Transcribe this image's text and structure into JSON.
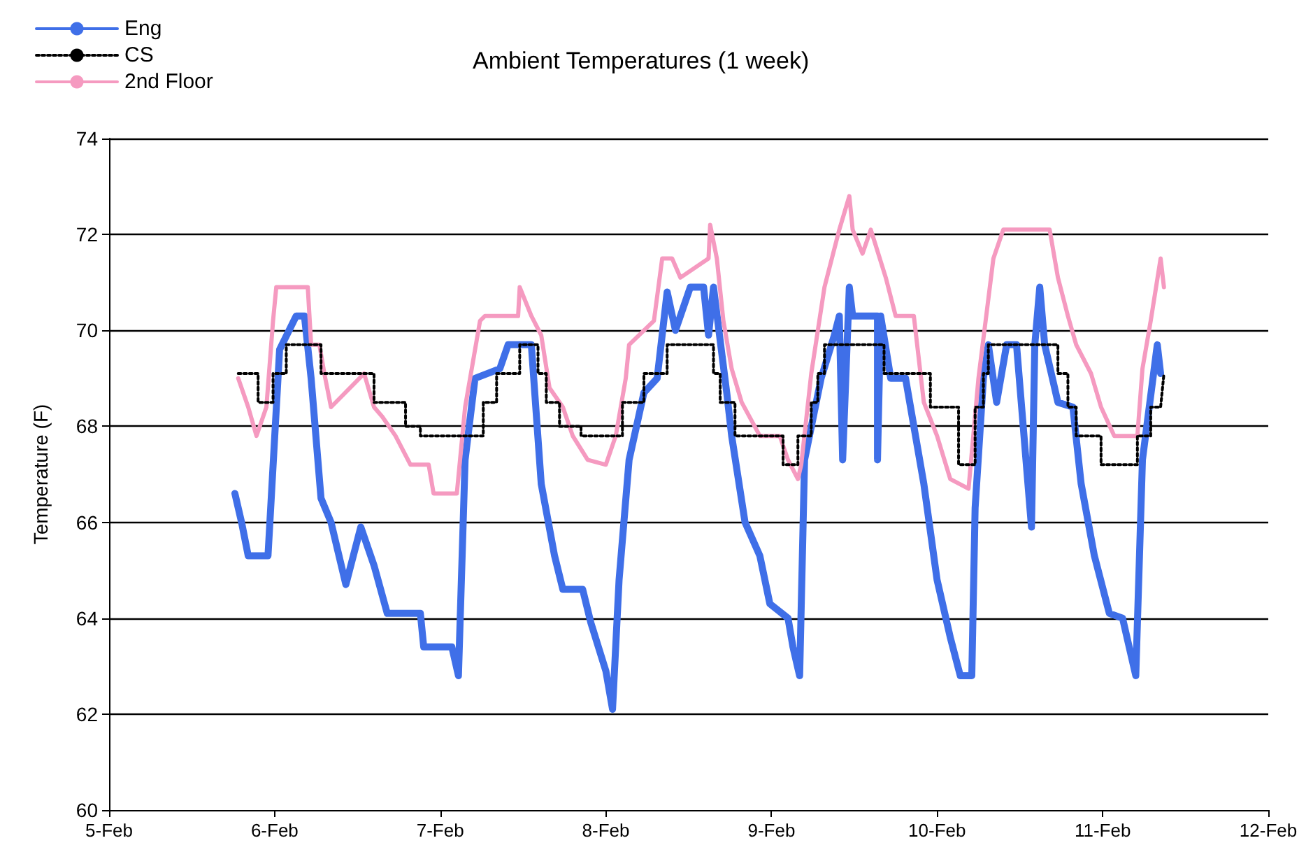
{
  "chart_data": {
    "type": "line",
    "title": "Ambient Temperatures (1 week)",
    "ylabel": "Temperature (F)",
    "xlim": [
      "--02-05",
      "--02-12"
    ],
    "xticks": [
      {
        "value": "--02-05",
        "label": "5-Feb"
      },
      {
        "value": "--02-06",
        "label": "6-Feb"
      },
      {
        "value": "--02-07",
        "label": "7-Feb"
      },
      {
        "value": "--02-08",
        "label": "8-Feb"
      },
      {
        "value": "--02-09",
        "label": "9-Feb"
      },
      {
        "value": "--02-10",
        "label": "10-Feb"
      },
      {
        "value": "--02-11",
        "label": "11-Feb"
      },
      {
        "value": "--02-12",
        "label": "12-Feb"
      }
    ],
    "ylim": [
      60,
      74
    ],
    "yticks": [
      60,
      62,
      64,
      66,
      68,
      70,
      72,
      74
    ],
    "grid": "y",
    "legend": "top left",
    "marker": "none",
    "series": [
      {
        "name": "Eng",
        "color": "#3f6fe8",
        "line_style": "solid",
        "x": [
          "--02-05T18:14",
          "--02-05T19:12",
          "--02-05T20:10",
          "--02-05T23:02",
          "--02-06T00:43",
          "--02-06T03:07",
          "--02-06T04:19",
          "--02-06T05:17",
          "--02-06T06:43",
          "--02-06T08:10",
          "--02-06T10:19",
          "--02-06T12:29",
          "--02-06T14:24",
          "--02-06T16:19",
          "--02-06T21:07",
          "--02-06T21:36",
          "--02-07T01:41",
          "--02-07T02:38",
          "--02-07T03:36",
          "--02-07T05:02",
          "--02-07T08:38",
          "--02-07T09:50",
          "--02-07T13:12",
          "--02-07T14:38",
          "--02-07T16:34",
          "--02-07T17:46",
          "--02-07T20:38",
          "--02-07T21:50",
          "--02-08T00:00",
          "--02-08T00:58",
          "--02-08T01:55",
          "--02-08T03:22",
          "--02-08T05:31",
          "--02-08T07:26",
          "--02-08T08:53",
          "--02-08T10:05",
          "--02-08T12:14",
          "--02-08T14:10",
          "--02-08T14:53",
          "--02-08T15:36",
          "--02-08T17:31",
          "--02-08T18:14",
          "--02-08T20:10",
          "--02-08T22:19",
          "--02-08T23:46",
          "--02-09T02:24",
          "--02-09T03:07",
          "--02-09T04:05",
          "--02-09T04:48",
          "--02-09T07:12",
          "--02-09T09:07",
          "--02-09T09:50",
          "--02-09T10:19",
          "--02-09T11:17",
          "--02-09T11:46",
          "--02-09T15:22",
          "--02-09T15:22",
          "--02-09T15:50",
          "--02-09T17:17",
          "--02-09T19:26",
          "--02-09T22:05",
          "--02-10T00:00",
          "--02-10T01:55",
          "--02-10T03:22",
          "--02-10T05:02",
          "--02-10T05:31",
          "--02-10T06:43",
          "--02-10T07:26",
          "--02-10T08:38",
          "--02-10T10:05",
          "--02-10T11:31",
          "--02-10T13:41",
          "--02-10T14:10",
          "--02-10T14:53",
          "--02-10T15:36",
          "--02-10T17:31",
          "--02-10T19:41",
          "--02-10T20:53",
          "--02-10T22:48",
          "--02-11T00:58",
          "--02-11T02:53",
          "--02-11T04:48",
          "--02-11T05:46",
          "--02-11T07:55",
          "--02-11T08:24"
        ],
        "values": [
          66.6,
          66.0,
          65.3,
          65.3,
          69.6,
          70.3,
          70.3,
          69.0,
          66.5,
          66.0,
          64.7,
          65.9,
          65.1,
          64.1,
          64.1,
          63.4,
          63.4,
          62.8,
          67.3,
          69.0,
          69.2,
          69.7,
          69.7,
          66.8,
          65.3,
          64.6,
          64.6,
          63.9,
          62.9,
          62.1,
          64.8,
          67.3,
          68.7,
          69.0,
          70.8,
          70.0,
          70.9,
          70.9,
          69.9,
          70.9,
          68.7,
          67.8,
          66.0,
          65.3,
          64.3,
          64.0,
          63.4,
          62.8,
          67.3,
          69.0,
          69.9,
          70.3,
          67.3,
          70.9,
          70.3,
          70.3,
          67.3,
          70.3,
          69.0,
          69.0,
          66.8,
          64.8,
          63.6,
          62.8,
          62.8,
          66.3,
          69.0,
          69.7,
          68.5,
          69.7,
          69.7,
          65.9,
          69.7,
          70.9,
          69.7,
          68.5,
          68.4,
          66.8,
          65.3,
          64.1,
          64.0,
          62.8,
          67.3,
          69.7,
          69.1
        ]
      },
      {
        "name": "CS",
        "color": "#000000",
        "line_style": "dotted",
        "x": [
          "--02-05T18:43",
          "--02-05T21:36",
          "--02-05T21:36",
          "--02-05T23:46",
          "--02-05T23:46",
          "--02-06T01:41",
          "--02-06T01:41",
          "--02-06T06:43",
          "--02-06T06:43",
          "--02-06T14:24",
          "--02-06T14:24",
          "--02-06T18:58",
          "--02-06T18:58",
          "--02-06T21:07",
          "--02-06T21:07",
          "--02-07T06:14",
          "--02-07T06:14",
          "--02-07T08:10",
          "--02-07T08:10",
          "--02-07T11:31",
          "--02-07T11:31",
          "--02-07T14:10",
          "--02-07T14:10",
          "--02-07T15:22",
          "--02-07T15:22",
          "--02-07T17:17",
          "--02-07T17:17",
          "--02-07T20:24",
          "--02-07T20:24",
          "--02-08T02:24",
          "--02-08T02:24",
          "--02-08T05:31",
          "--02-08T05:31",
          "--02-08T08:53",
          "--02-08T08:53",
          "--02-08T15:36",
          "--02-08T15:36",
          "--02-08T16:34",
          "--02-08T16:34",
          "--02-08T18:43",
          "--02-08T18:43",
          "--02-08T22:34",
          "--02-08T22:34",
          "--02-09T01:41",
          "--02-09T01:41",
          "--02-09T03:50",
          "--02-09T03:50",
          "--02-09T05:46",
          "--02-09T05:46",
          "--02-09T06:43",
          "--02-09T06:43",
          "--02-09T07:41",
          "--02-09T07:41",
          "--02-09T16:19",
          "--02-09T16:19",
          "--02-09T23:02",
          "--02-09T23:02",
          "--02-10T03:07",
          "--02-10T03:07",
          "--02-10T05:31",
          "--02-10T05:31",
          "--02-10T06:43",
          "--02-10T06:43",
          "--02-10T07:26",
          "--02-10T07:26",
          "--02-10T17:31",
          "--02-10T17:31",
          "--02-10T18:58",
          "--02-10T18:58",
          "--02-10T20:10",
          "--02-10T20:10",
          "--02-10T23:46",
          "--02-10T23:46",
          "--02-11T05:02",
          "--02-11T05:02",
          "--02-11T06:58",
          "--02-11T06:58",
          "--02-11T08:24",
          "--02-11T08:53"
        ],
        "values": [
          69.1,
          69.1,
          68.5,
          68.5,
          69.1,
          69.1,
          69.7,
          69.7,
          69.1,
          69.1,
          68.5,
          68.5,
          68.0,
          68.0,
          67.8,
          67.8,
          68.5,
          68.5,
          69.1,
          69.1,
          69.7,
          69.7,
          69.1,
          69.1,
          68.5,
          68.5,
          68.0,
          68.0,
          67.8,
          67.8,
          68.5,
          68.5,
          69.1,
          69.1,
          69.7,
          69.7,
          69.1,
          69.1,
          68.5,
          68.5,
          67.8,
          67.8,
          67.8,
          67.8,
          67.2,
          67.2,
          67.8,
          67.8,
          68.5,
          68.5,
          69.1,
          69.1,
          69.7,
          69.7,
          69.1,
          69.1,
          68.4,
          68.4,
          67.2,
          67.2,
          68.4,
          68.4,
          69.1,
          69.1,
          69.7,
          69.7,
          69.1,
          69.1,
          68.4,
          68.4,
          67.8,
          67.8,
          67.2,
          67.2,
          67.8,
          67.8,
          68.4,
          68.4,
          69.1
        ]
      },
      {
        "name": "2nd Floor",
        "color": "#f59ac0",
        "line_style": "solid",
        "x": [
          "--02-05T18:43",
          "--02-05T20:10",
          "--02-05T21:22",
          "--02-05T22:48",
          "--02-05T23:46",
          "--02-06T00:14",
          "--02-06T04:48",
          "--02-06T05:17",
          "--02-06T06:29",
          "--02-06T07:12",
          "--02-06T08:10",
          "--02-06T12:58",
          "--02-06T14:24",
          "--02-06T15:36",
          "--02-06T17:31",
          "--02-06T19:41",
          "--02-06T22:19",
          "--02-06T23:02",
          "--02-07T02:24",
          "--02-07T03:36",
          "--02-07T05:46",
          "--02-07T06:29",
          "--02-07T11:17",
          "--02-07T11:31",
          "--02-07T13:12",
          "--02-07T14:38",
          "--02-07T15:50",
          "--02-07T17:46",
          "--02-07T19:12",
          "--02-07T21:22",
          "--02-08T00:00",
          "--02-08T01:26",
          "--02-08T02:53",
          "--02-08T03:22",
          "--02-08T06:58",
          "--02-08T08:10",
          "--02-08T09:36",
          "--02-08T10:48",
          "--02-08T14:53",
          "--02-08T15:07",
          "--02-08T16:05",
          "--02-08T17:02",
          "--02-08T18:14",
          "--02-08T19:41",
          "--02-08T22:19",
          "--02-09T01:12",
          "--02-09T02:24",
          "--02-09T03:50",
          "--02-09T04:19",
          "--02-09T05:46",
          "--02-09T07:41",
          "--02-09T09:50",
          "--02-09T11:17",
          "--02-09T11:46",
          "--02-09T13:12",
          "--02-09T14:24",
          "--02-09T16:34",
          "--02-09T18:00",
          "--02-09T20:38",
          "--02-09T22:05",
          "--02-10T00:00",
          "--02-10T01:55",
          "--02-10T04:34",
          "--02-10T06:00",
          "--02-10T08:10",
          "--02-10T09:36",
          "--02-10T16:19",
          "--02-10T17:31",
          "--02-10T18:58",
          "--02-10T20:10",
          "--02-10T22:19",
          "--02-10T23:46",
          "--02-11T01:41",
          "--02-11T05:02",
          "--02-11T05:46",
          "--02-11T06:58",
          "--02-11T08:24",
          "--02-11T08:53"
        ],
        "values": [
          69.0,
          68.4,
          67.8,
          68.4,
          70.2,
          70.9,
          70.9,
          69.7,
          69.7,
          69.1,
          68.4,
          69.1,
          68.4,
          68.2,
          67.8,
          67.2,
          67.2,
          66.6,
          66.6,
          68.4,
          70.2,
          70.3,
          70.3,
          70.9,
          70.3,
          69.9,
          68.8,
          68.4,
          67.8,
          67.3,
          67.2,
          67.8,
          69.0,
          69.7,
          70.2,
          71.5,
          71.5,
          71.1,
          71.5,
          72.2,
          71.5,
          70.2,
          69.2,
          68.5,
          67.8,
          67.8,
          67.3,
          66.9,
          67.2,
          69.1,
          70.9,
          72.1,
          72.8,
          72.1,
          71.6,
          72.1,
          71.1,
          70.3,
          70.3,
          68.5,
          67.8,
          66.9,
          66.7,
          69.0,
          71.5,
          72.1,
          72.1,
          71.1,
          70.3,
          69.7,
          69.1,
          68.4,
          67.8,
          67.8,
          69.2,
          70.2,
          71.5,
          70.9
        ]
      }
    ]
  }
}
